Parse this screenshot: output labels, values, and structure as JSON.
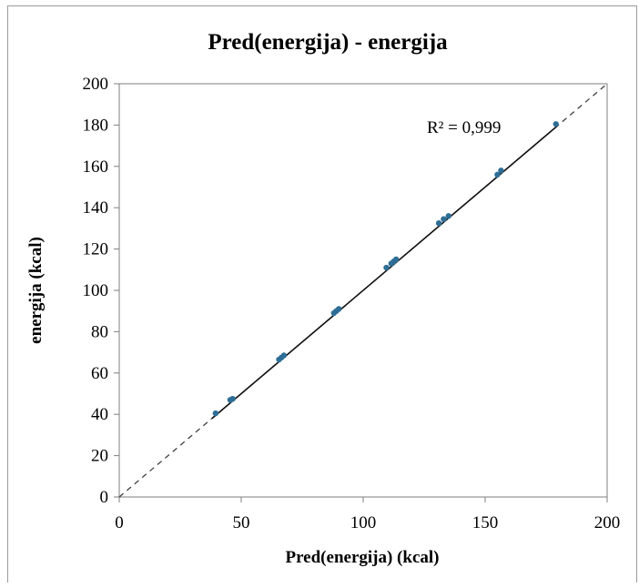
{
  "chart_data": {
    "type": "scatter",
    "title": "Pred(energija) - energija",
    "xlabel": "Pred(energija) (kcal)",
    "ylabel": "energija (kcal)",
    "xlim": [
      0,
      200
    ],
    "ylim": [
      0,
      200
    ],
    "xticks": [
      "0",
      "50",
      "100",
      "150",
      "200"
    ],
    "yticks": [
      "0",
      "20",
      "40",
      "60",
      "80",
      "100",
      "120",
      "140",
      "160",
      "180",
      "200"
    ],
    "grid": false,
    "legend": "none",
    "annotation": "R² = 0,999",
    "point_color": "#2e6e96",
    "points": [
      {
        "x": 39.5,
        "y": 40.5
      },
      {
        "x": 45.5,
        "y": 47
      },
      {
        "x": 46.5,
        "y": 47.5
      },
      {
        "x": 65.5,
        "y": 66.5
      },
      {
        "x": 66.5,
        "y": 67.5
      },
      {
        "x": 67.5,
        "y": 68.5
      },
      {
        "x": 88,
        "y": 89
      },
      {
        "x": 89,
        "y": 90
      },
      {
        "x": 90,
        "y": 91
      },
      {
        "x": 109.5,
        "y": 111
      },
      {
        "x": 111.5,
        "y": 113
      },
      {
        "x": 112.5,
        "y": 114
      },
      {
        "x": 113.5,
        "y": 115
      },
      {
        "x": 131,
        "y": 132.5
      },
      {
        "x": 133,
        "y": 134.5
      },
      {
        "x": 135,
        "y": 136
      },
      {
        "x": 155,
        "y": 156
      },
      {
        "x": 156.5,
        "y": 158
      },
      {
        "x": 179,
        "y": 180.5
      }
    ],
    "fit_line": {
      "x": [
        38,
        180
      ],
      "y": [
        38,
        180
      ]
    },
    "reference_line": {
      "x": [
        0,
        200
      ],
      "y": [
        0,
        200
      ],
      "style": "dashed"
    }
  }
}
